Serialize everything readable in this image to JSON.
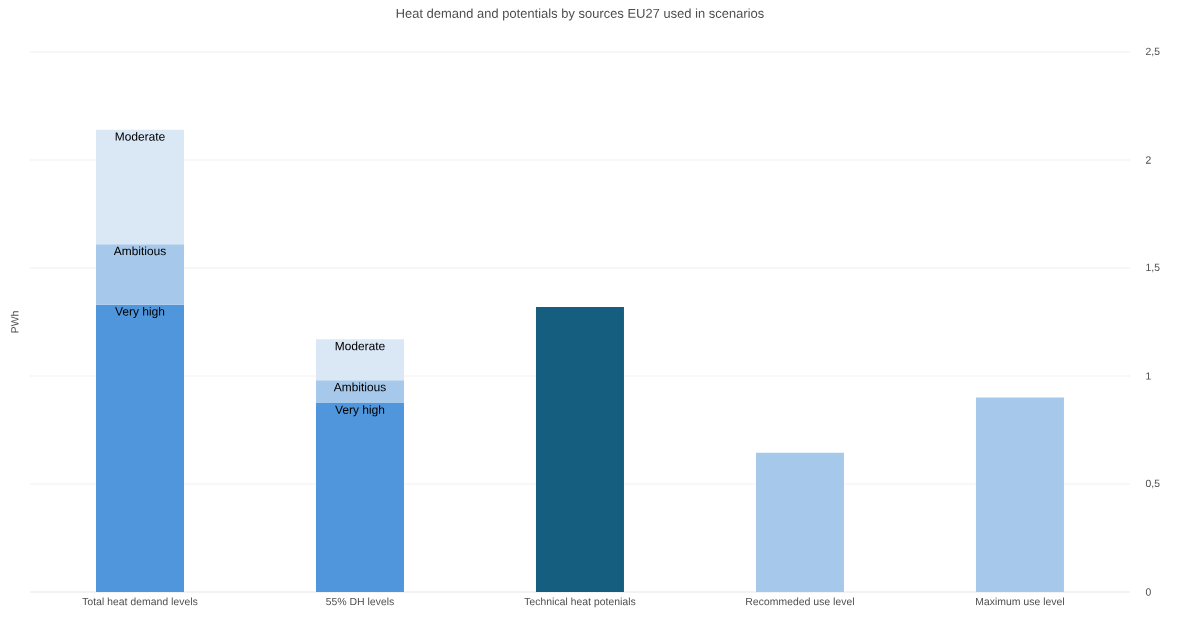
{
  "chart_data": {
    "type": "bar",
    "stacked": true,
    "title": "Heat demand and potentials by sources EU27 used in scenarios",
    "ylabel": "PWh",
    "categories": [
      "Total heat demand levels",
      "55% DH levels",
      "Technical heat potenials",
      "Recommeded use level",
      "Maximum use level"
    ],
    "series": [
      {
        "name": "Very high",
        "color": "#4f96dc",
        "values": [
          1.33,
          0.875,
          null,
          null,
          null
        ]
      },
      {
        "name": "Ambitious",
        "color": "#a6c8ea",
        "values": [
          0.28,
          0.105,
          null,
          null,
          null
        ]
      },
      {
        "name": "Moderate",
        "color": "#dae8f6",
        "values": [
          0.53,
          0.19,
          null,
          null,
          null
        ]
      },
      {
        "colors": [
          "#165e80",
          "#165e80",
          "#165e80",
          "#a6c8ea",
          "#a6c8ea"
        ],
        "values": [
          null,
          null,
          1.32,
          0.645,
          0.9
        ]
      }
    ],
    "ylim": [
      0,
      2.5
    ],
    "yticks": [
      0,
      {
        "value": 0.5,
        "label": "0,5"
      },
      1,
      {
        "value": 1.5,
        "label": "1,5"
      },
      2,
      {
        "value": 2.5,
        "label": "2,5"
      }
    ],
    "grid": "y"
  }
}
